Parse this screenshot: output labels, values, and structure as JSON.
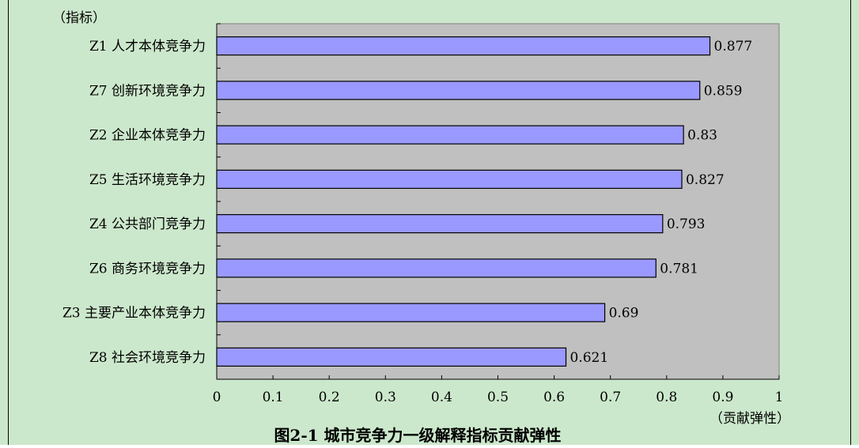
{
  "chart_data": {
    "type": "bar",
    "orientation": "horizontal",
    "title": "图2-1 城市竞争力一级解释指标贡献弹性",
    "ylabel": "（指标）",
    "xlabel": "（贡献弹性）",
    "categories": [
      "Z1 人才本体竞争力",
      "Z7 创新环境竞争力",
      "Z2 企业本体竞争力",
      "Z5 生活环境竞争力",
      "Z4 公共部门竞争力",
      "Z6 商务环境竞争力",
      "Z3 主要产业本体竞争力",
      "Z8 社会环境竞争力"
    ],
    "values": [
      0.877,
      0.859,
      0.83,
      0.827,
      0.793,
      0.781,
      0.69,
      0.621
    ],
    "value_labels": [
      "0.877",
      "0.859",
      "0.83",
      "0.827",
      "0.793",
      "0.781",
      "0.69",
      "0.621"
    ],
    "xlim": [
      0,
      1
    ],
    "xticks": [
      "0",
      "0.1",
      "0.2",
      "0.3",
      "0.4",
      "0.5",
      "0.6",
      "0.7",
      "0.8",
      "0.9",
      "1"
    ],
    "grid": false,
    "legend": "none",
    "colors": {
      "frame_background": "#CCE8CC",
      "plot_background": "#C0C0C0",
      "bar_fill": "#9999FF",
      "bar_stroke": "#000000"
    }
  }
}
